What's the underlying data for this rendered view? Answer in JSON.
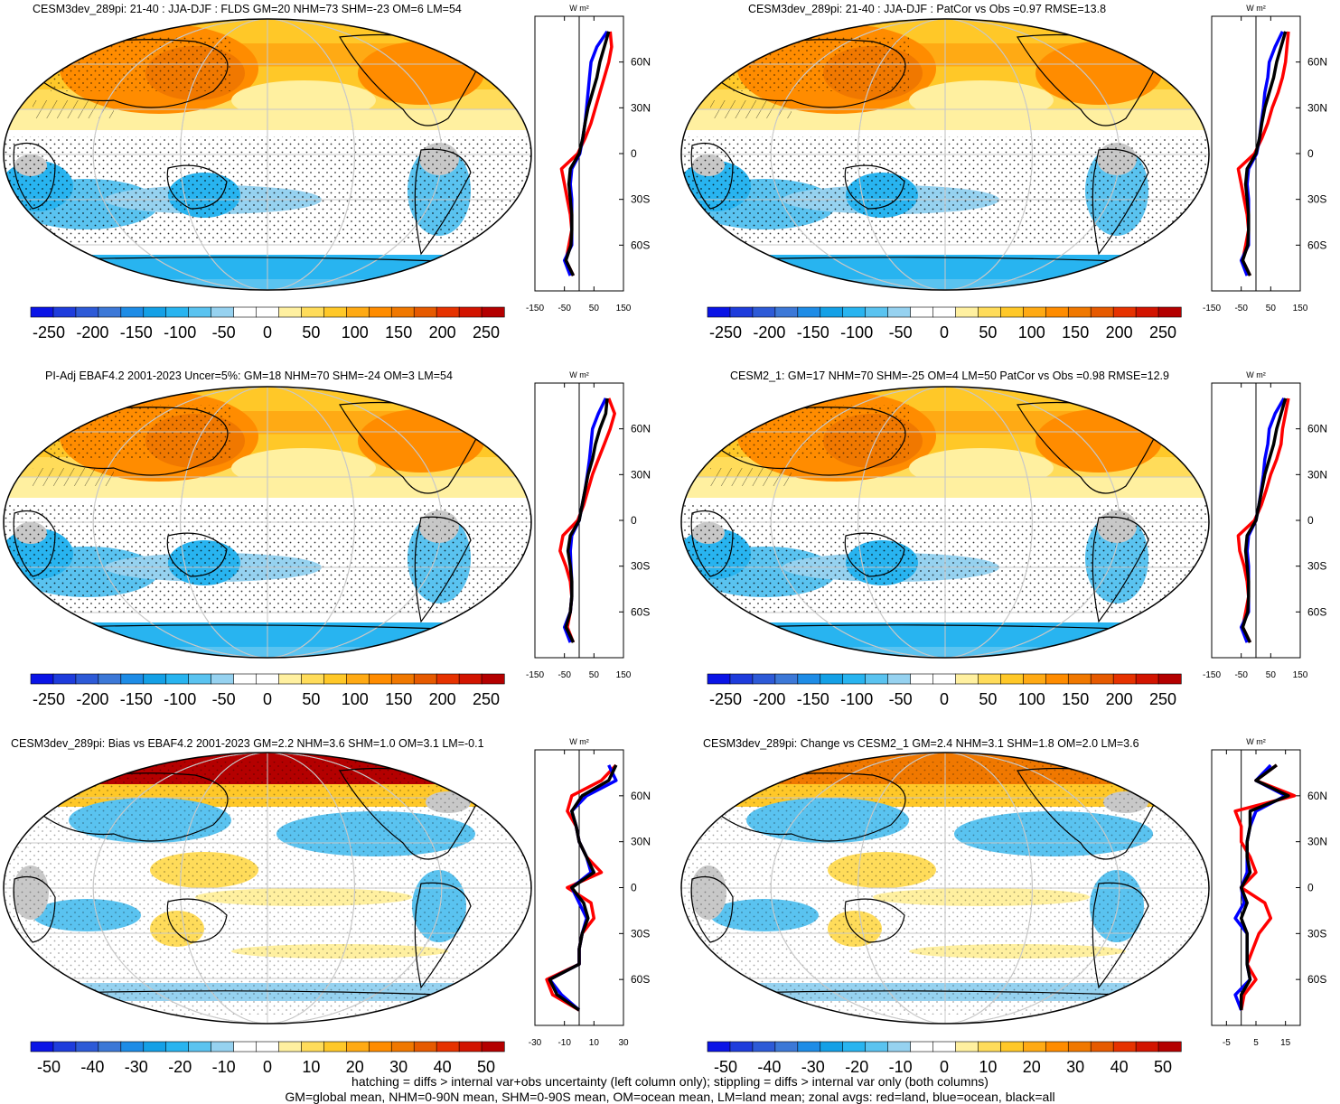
{
  "colors": {
    "map_bins": [
      "#0a14e6",
      "#1e3cdc",
      "#2d5ad7",
      "#3c78d7",
      "#1e8ce6",
      "#14a0e6",
      "#28b4f0",
      "#5ac3f0",
      "#96d2f0",
      "#ffffff",
      "#ffffff",
      "#fff0a0",
      "#ffdc5a",
      "#ffc828",
      "#ffaa14",
      "#ff8c00",
      "#f07800",
      "#e65a00",
      "#e63200",
      "#d21400",
      "#b40000"
    ],
    "land_mask": "#c8c8c8",
    "series_land": "#ff0000",
    "series_ocean": "#0000ff",
    "series_all": "#000000"
  },
  "panels": [
    {
      "id": "cesm3dev-jja-djf",
      "title": "CESM3dev_289pi: 21-40 : JJA-DJF : FLDS GM=20 NHM=73 SHM=-23 OM=6 LM=54",
      "colorbar": {
        "labels": [
          "-250",
          "-200",
          "-150",
          "-100",
          "-50",
          "0",
          "50",
          "100",
          "150",
          "200",
          "250"
        ]
      },
      "zonal": {
        "unit": "W m²",
        "xticks": [
          "-150",
          "-50",
          "50",
          "150"
        ]
      }
    },
    {
      "id": "cesm3dev-patcor",
      "title": "CESM3dev_289pi: 21-40 : JJA-DJF : PatCor vs Obs =0.97 RMSE=13.8",
      "colorbar": {
        "labels": [
          "-250",
          "-200",
          "-150",
          "-100",
          "-50",
          "0",
          "50",
          "100",
          "150",
          "200",
          "250"
        ]
      },
      "zonal": {
        "unit": "W m²",
        "xticks": [
          "-150",
          "-50",
          "50",
          "150"
        ]
      }
    },
    {
      "id": "obs-ebaf",
      "title": "PI-Adj EBAF4.2 2001-2023 Uncer=5%: GM=18 NHM=70 SHM=-24 OM=3 LM=54",
      "colorbar": {
        "labels": [
          "-250",
          "-200",
          "-150",
          "-100",
          "-50",
          "0",
          "50",
          "100",
          "150",
          "200",
          "250"
        ]
      },
      "zonal": {
        "unit": "W m²",
        "xticks": [
          "-150",
          "-50",
          "50",
          "150"
        ]
      }
    },
    {
      "id": "cesm2",
      "title": "CESM2_1: GM=17 NHM=70 SHM=-25 OM=4 LM=50 PatCor vs Obs =0.98 RMSE=12.9",
      "colorbar": {
        "labels": [
          "-250",
          "-200",
          "-150",
          "-100",
          "-50",
          "0",
          "50",
          "100",
          "150",
          "200",
          "250"
        ]
      },
      "zonal": {
        "unit": "W m²",
        "xticks": [
          "-150",
          "-50",
          "50",
          "150"
        ]
      }
    },
    {
      "id": "bias",
      "title": "CESM3dev_289pi: Bias vs EBAF4.2 2001-2023 GM=2.2 NHM=3.6 SHM=1.0 OM=3.1 LM=-0.1",
      "colorbar": {
        "labels": [
          "-50",
          "-40",
          "-30",
          "-20",
          "-10",
          "0",
          "10",
          "20",
          "30",
          "40",
          "50"
        ]
      },
      "zonal": {
        "unit": "W m²",
        "xticks": [
          "-30",
          "-10",
          "10",
          "30"
        ]
      }
    },
    {
      "id": "change",
      "title": "CESM3dev_289pi: Change vs CESM2_1 GM=2.4 NHM=3.1 SHM=1.8 OM=2.0 LM=3.6",
      "colorbar": {
        "labels": [
          "-50",
          "-40",
          "-30",
          "-20",
          "-10",
          "0",
          "10",
          "20",
          "30",
          "40",
          "50"
        ]
      },
      "zonal": {
        "unit": "W m²",
        "xticks": [
          "-5",
          "5",
          "15"
        ]
      }
    }
  ],
  "footer": {
    "line1": "hatching = diffs > internal var+obs uncertainty (left column only); stippling = diffs > internal var only (both columns)",
    "line2": "GM=global mean, NHM=0-90N mean, SHM=0-90S mean, OM=ocean mean, LM=land mean; zonal avgs: red=land, blue=ocean, black=all"
  },
  "chart_data": [
    {
      "type": "map+line",
      "panel": "cesm3dev-jja-djf",
      "title": "CESM3dev_289pi: 21-40 : JJA-DJF : FLDS GM=20 NHM=73 SHM=-23 OM=6 LM=54",
      "colorbar_range": [
        -250,
        250
      ],
      "zonal_xlim": [
        -150,
        150
      ],
      "ylabels": [
        "60N",
        "30N",
        "0",
        "30S",
        "60S"
      ],
      "lat": [
        80,
        70,
        60,
        50,
        40,
        30,
        20,
        10,
        0,
        -10,
        -20,
        -30,
        -40,
        -50,
        -60,
        -70,
        -80
      ],
      "series": [
        {
          "name": "land",
          "color": "#ff0000",
          "values": [
            105,
            110,
            100,
            85,
            70,
            55,
            40,
            20,
            -5,
            -60,
            -50,
            -40,
            -30,
            -25,
            -35,
            -45,
            -20
          ]
        },
        {
          "name": "ocean",
          "color": "#0000ff",
          "values": [
            95,
            60,
            40,
            35,
            30,
            25,
            20,
            12,
            2,
            -25,
            -30,
            -25,
            -25,
            -25,
            -25,
            -50,
            -30
          ]
        },
        {
          "name": "all",
          "color": "#000000",
          "values": [
            100,
            85,
            70,
            60,
            45,
            30,
            20,
            12,
            0,
            -30,
            -35,
            -30,
            -25,
            -25,
            -28,
            -45,
            -20
          ]
        }
      ]
    },
    {
      "type": "map+line",
      "panel": "cesm3dev-patcor",
      "title": "CESM3dev_289pi: 21-40 : JJA-DJF : PatCor vs Obs =0.97 RMSE=13.8",
      "colorbar_range": [
        -250,
        250
      ],
      "zonal_xlim": [
        -150,
        150
      ],
      "ylabels": [
        "60N",
        "30N",
        "0",
        "30S",
        "60S"
      ],
      "lat": [
        80,
        70,
        60,
        50,
        40,
        30,
        20,
        10,
        0,
        -10,
        -20,
        -30,
        -40,
        -50,
        -60,
        -70,
        -80
      ],
      "series": [
        {
          "name": "land",
          "color": "#ff0000",
          "values": [
            110,
            105,
            100,
            90,
            75,
            55,
            40,
            20,
            -5,
            -60,
            -50,
            -40,
            -30,
            -25,
            -35,
            -45,
            -20
          ]
        },
        {
          "name": "ocean",
          "color": "#0000ff",
          "values": [
            90,
            65,
            45,
            40,
            30,
            25,
            18,
            12,
            2,
            -25,
            -30,
            -25,
            -25,
            -25,
            -25,
            -50,
            -30
          ]
        },
        {
          "name": "all",
          "color": "#000000",
          "values": [
            100,
            85,
            70,
            60,
            45,
            30,
            20,
            12,
            0,
            -30,
            -35,
            -30,
            -25,
            -25,
            -28,
            -45,
            -20
          ]
        }
      ]
    },
    {
      "type": "map+line",
      "panel": "obs-ebaf",
      "title": "PI-Adj EBAF4.2 2001-2023 Uncer=5%: GM=18 NHM=70 SHM=-24 OM=3 LM=54",
      "colorbar_range": [
        -250,
        250
      ],
      "zonal_xlim": [
        -150,
        150
      ],
      "ylabels": [
        "60N",
        "30N",
        "0",
        "30S",
        "60S"
      ],
      "lat": [
        80,
        70,
        60,
        50,
        40,
        30,
        20,
        10,
        0,
        -10,
        -20,
        -30,
        -40,
        -50,
        -60,
        -70,
        -80
      ],
      "series": [
        {
          "name": "land",
          "color": "#ff0000",
          "values": [
            100,
            120,
            105,
            85,
            65,
            45,
            30,
            15,
            -5,
            -55,
            -65,
            -45,
            -30,
            -25,
            -30,
            -40,
            -20
          ]
        },
        {
          "name": "ocean",
          "color": "#0000ff",
          "values": [
            90,
            65,
            45,
            40,
            35,
            28,
            20,
            10,
            0,
            -25,
            -30,
            -28,
            -25,
            -25,
            -30,
            -50,
            -30
          ]
        },
        {
          "name": "all",
          "color": "#000000",
          "values": [
            95,
            90,
            70,
            55,
            45,
            30,
            20,
            10,
            0,
            -30,
            -38,
            -30,
            -25,
            -25,
            -30,
            -45,
            -20
          ]
        }
      ]
    },
    {
      "type": "map+line",
      "panel": "cesm2",
      "title": "CESM2_1: GM=17 NHM=70 SHM=-25 OM=4 LM=50 PatCor vs Obs =0.98 RMSE=12.9",
      "colorbar_range": [
        -250,
        250
      ],
      "zonal_xlim": [
        -150,
        150
      ],
      "ylabels": [
        "60N",
        "30N",
        "0",
        "30S",
        "60S"
      ],
      "lat": [
        80,
        70,
        60,
        50,
        40,
        30,
        20,
        10,
        0,
        -10,
        -20,
        -30,
        -40,
        -50,
        -60,
        -70,
        -80
      ],
      "series": [
        {
          "name": "land",
          "color": "#ff0000",
          "values": [
            110,
            100,
            90,
            85,
            70,
            50,
            35,
            18,
            -5,
            -60,
            -55,
            -40,
            -30,
            -25,
            -35,
            -45,
            -20
          ]
        },
        {
          "name": "ocean",
          "color": "#0000ff",
          "values": [
            95,
            65,
            45,
            40,
            30,
            25,
            18,
            10,
            0,
            -25,
            -30,
            -25,
            -25,
            -25,
            -25,
            -50,
            -30
          ]
        },
        {
          "name": "all",
          "color": "#000000",
          "values": [
            100,
            85,
            70,
            60,
            45,
            30,
            20,
            10,
            0,
            -30,
            -35,
            -30,
            -25,
            -25,
            -28,
            -45,
            -20
          ]
        }
      ]
    },
    {
      "type": "map+line",
      "panel": "bias",
      "title": "CESM3dev_289pi: Bias vs EBAF4.2 2001-2023 GM=2.2 NHM=3.6 SHM=1.0 OM=3.1 LM=-0.1",
      "colorbar_range": [
        -50,
        50
      ],
      "zonal_xlim": [
        -30,
        30
      ],
      "ylabels": [
        "60N",
        "30N",
        "0",
        "30S",
        "60S"
      ],
      "lat": [
        80,
        70,
        60,
        50,
        40,
        30,
        20,
        10,
        0,
        -10,
        -20,
        -30,
        -40,
        -50,
        -60,
        -70,
        -80
      ],
      "series": [
        {
          "name": "land",
          "color": "#ff0000",
          "values": [
            25,
            15,
            -5,
            -8,
            -2,
            0,
            5,
            15,
            -8,
            8,
            10,
            2,
            0,
            0,
            -22,
            -18,
            0
          ]
        },
        {
          "name": "ocean",
          "color": "#0000ff",
          "values": [
            20,
            25,
            5,
            -5,
            -2,
            0,
            5,
            8,
            -5,
            0,
            5,
            2,
            0,
            0,
            -20,
            -12,
            0
          ]
        },
        {
          "name": "all",
          "color": "#000000",
          "values": [
            25,
            20,
            2,
            -5,
            -2,
            0,
            5,
            10,
            -5,
            3,
            6,
            2,
            0,
            0,
            -20,
            -15,
            0
          ]
        }
      ]
    },
    {
      "type": "map+line",
      "panel": "change",
      "title": "CESM3dev_289pi: Change vs CESM2_1 GM=2.4 NHM=3.1 SHM=1.8 OM=2.0 LM=3.6",
      "colorbar_range": [
        -50,
        50
      ],
      "zonal_xlim": [
        -10,
        20
      ],
      "ylabels": [
        "60N",
        "30N",
        "0",
        "30S",
        "60S"
      ],
      "lat": [
        80,
        70,
        60,
        50,
        40,
        30,
        20,
        10,
        0,
        -10,
        -20,
        -30,
        -40,
        -50,
        -60,
        -70,
        -80
      ],
      "series": [
        {
          "name": "land",
          "color": "#ff0000",
          "values": [
            12,
            5,
            18,
            -2,
            0,
            0,
            3,
            5,
            0,
            8,
            10,
            6,
            4,
            2,
            5,
            1,
            0
          ]
        },
        {
          "name": "ocean",
          "color": "#0000ff",
          "values": [
            10,
            5,
            15,
            5,
            3,
            2,
            2,
            2,
            0,
            1,
            -2,
            2,
            2,
            2,
            3,
            -2,
            0
          ]
        },
        {
          "name": "all",
          "color": "#000000",
          "values": [
            12,
            5,
            16,
            3,
            3,
            2,
            2,
            3,
            0,
            2,
            0,
            2,
            2,
            2,
            3,
            0,
            0
          ]
        }
      ]
    }
  ]
}
